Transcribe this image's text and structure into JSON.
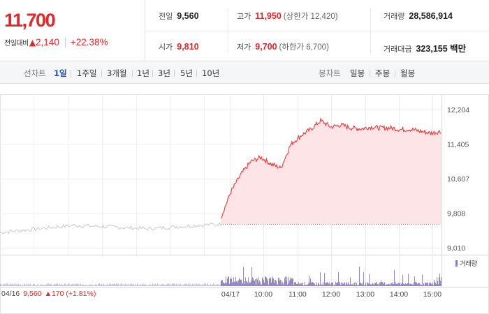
{
  "header": {
    "price": "11,700",
    "change_label": "전일대비",
    "change_value": "2,140",
    "change_pct": "+22.38%",
    "up_color": "#e12727",
    "prev_close": {
      "label": "전일",
      "value": "9,560"
    },
    "high": {
      "label": "고가",
      "value": "11,950",
      "sub": "(상한가 12,420)"
    },
    "volume": {
      "label": "거래량",
      "value": "28,586,914"
    },
    "open": {
      "label": "시가",
      "value": "9,810"
    },
    "low": {
      "label": "저가",
      "value": "9,700",
      "sub": "(하한가 6,700)"
    },
    "trade_amount": {
      "label": "거래대금",
      "value": "323,155 백만"
    }
  },
  "toolbar": {
    "line_chart_label": "선차트",
    "periods": [
      "1일",
      "1주일",
      "3개월",
      "1년",
      "3년",
      "5년",
      "10년"
    ],
    "active_period": "1일",
    "candle_label": "봉차트",
    "candles": [
      "일봉",
      "주봉",
      "월봉"
    ]
  },
  "chart": {
    "y_ticks": [
      "12,204",
      "11,405",
      "10,607",
      "9,808",
      "9,010"
    ],
    "x_labels": [
      "04/16",
      "04/17",
      "10:00",
      "11:00",
      "12:00",
      "13:00",
      "14:00",
      "15:00"
    ],
    "volume_legend": "거래량",
    "prev_day_info": {
      "date": "04/16",
      "price": "9,560",
      "change": "170",
      "pct": "(+1.81%)"
    },
    "line_color": "#e83b3b",
    "fill_color": "#fde4e6",
    "prev_line_color": "#c5cbd3",
    "volume_color": "#8a7bbf"
  },
  "chart_data": {
    "type": "area",
    "ylim": [
      9010,
      12204
    ],
    "reference_line": 9560,
    "series": [
      {
        "x": [
          "04/16 09:00",
          "04/16 11:00",
          "04/16 13:00",
          "04/16 15:30"
        ],
        "values": [
          9360,
          9530,
          9450,
          9560
        ]
      },
      {
        "x": [
          "09:00",
          "09:10",
          "09:20",
          "09:30",
          "09:40",
          "09:50",
          "10:00",
          "10:10",
          "10:20",
          "10:30",
          "10:40",
          "10:50",
          "11:00",
          "11:15",
          "11:30",
          "12:00",
          "12:30",
          "13:00",
          "13:30",
          "14:00",
          "14:30",
          "15:00",
          "15:30"
        ],
        "values": [
          9700,
          10300,
          10700,
          11000,
          11100,
          10950,
          10850,
          11400,
          11600,
          11750,
          11950,
          11800,
          11850,
          11780,
          11760,
          11800,
          11780,
          11780,
          11740,
          11750,
          11700,
          11660,
          11700
        ]
      }
    ]
  }
}
